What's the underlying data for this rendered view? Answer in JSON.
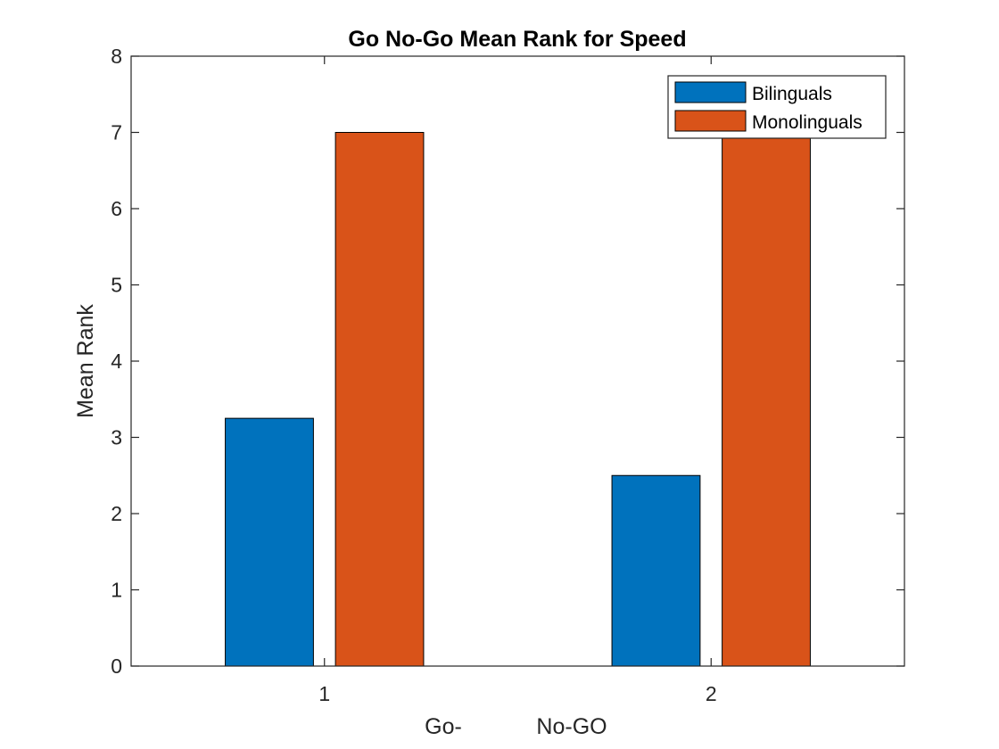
{
  "chart_data": {
    "type": "bar",
    "title": "Go No-Go Mean Rank for Speed",
    "ylabel": "Mean Rank",
    "xlabel_parts": [
      "Go-",
      "No-GO"
    ],
    "categories": [
      "1",
      "2"
    ],
    "ylim": [
      0,
      8
    ],
    "yticks": [
      "0",
      "1",
      "2",
      "3",
      "4",
      "5",
      "6",
      "7",
      "8"
    ],
    "series": [
      {
        "name": "Bilinguals",
        "values": [
          3.25,
          2.5
        ],
        "color": "#0072BD"
      },
      {
        "name": "Monolinguals",
        "values": [
          7,
          7
        ],
        "color": "#D95319"
      }
    ],
    "legend_position": "top-right",
    "grid": false
  }
}
